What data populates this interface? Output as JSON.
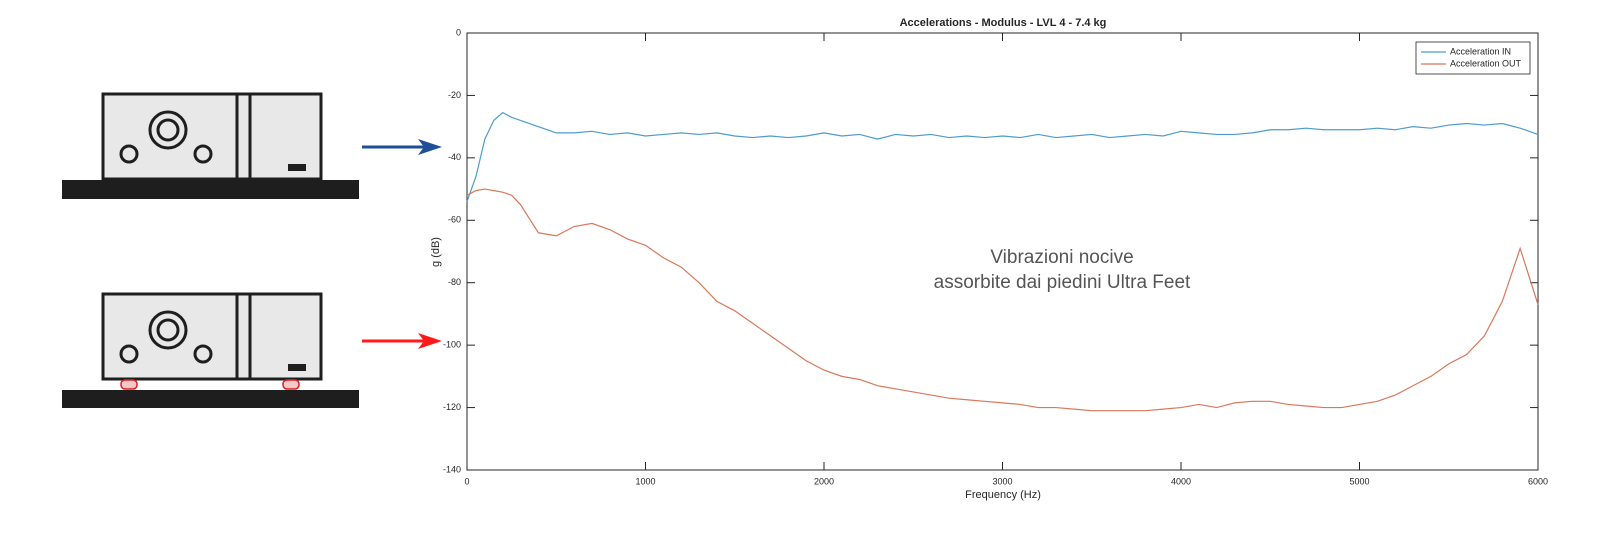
{
  "chart_data": {
    "type": "line",
    "title": "Accelerations - Modulus - LVL 4 - 7.4 kg",
    "x_label": "Frequency (Hz)",
    "y_label": "g (dB)",
    "annotation": [
      "Vibrazioni nocive",
      "assorbite dai piedini Ultra Feet"
    ],
    "x": [
      0,
      50,
      100,
      150,
      200,
      250,
      300,
      400,
      500,
      600,
      700,
      800,
      900,
      1000,
      1100,
      1200,
      1300,
      1400,
      1500,
      1600,
      1700,
      1800,
      1900,
      2000,
      2100,
      2200,
      2300,
      2400,
      2500,
      2600,
      2700,
      2800,
      2900,
      3000,
      3100,
      3200,
      3300,
      3400,
      3500,
      3600,
      3700,
      3800,
      3900,
      4000,
      4100,
      4200,
      4300,
      4400,
      4500,
      4600,
      4700,
      4800,
      4900,
      5000,
      5100,
      5200,
      5300,
      5400,
      5500,
      5600,
      5700,
      5800,
      5900,
      6000
    ],
    "series": [
      {
        "name": "Acceleration IN",
        "color": "#4d9ccc",
        "values": [
          -54,
          -46,
          -34,
          -28,
          -25.5,
          -27,
          -28,
          -30,
          -32,
          -32,
          -31.5,
          -32.5,
          -32,
          -33,
          -32.5,
          -32,
          -32.5,
          -32,
          -33,
          -33.5,
          -33,
          -33.5,
          -33,
          -32,
          -33,
          -32.5,
          -34,
          -32.5,
          -33,
          -32.5,
          -33.5,
          -33,
          -33.5,
          -33,
          -33.5,
          -32.5,
          -33.5,
          -33,
          -32.5,
          -33.5,
          -33,
          -32.5,
          -33,
          -31.5,
          -32,
          -32.5,
          -32.5,
          -32,
          -31,
          -31,
          -30.5,
          -31,
          -31,
          -31,
          -30.5,
          -31,
          -30,
          -30.5,
          -29.5,
          -29,
          -29.5,
          -29,
          -30.5,
          -32.5
        ]
      },
      {
        "name": "Acceleration OUT",
        "color": "#d9785a",
        "values": [
          -52,
          -50.5,
          -50,
          -50.5,
          -51,
          -52,
          -55,
          -64,
          -65,
          -62,
          -61,
          -63,
          -66,
          -68,
          -72,
          -75,
          -80,
          -86,
          -89,
          -93,
          -97,
          -101,
          -105,
          -108,
          -110,
          -111,
          -113,
          -114,
          -115,
          -116,
          -117,
          -117.5,
          -118,
          -118.5,
          -119,
          -120,
          -120,
          -120.5,
          -121,
          -121,
          -121,
          -121,
          -120.5,
          -120,
          -119,
          -120,
          -118.5,
          -118,
          -118,
          -119,
          -119.5,
          -120,
          -120,
          -119,
          -118,
          -116,
          -113,
          -110,
          -106,
          -103,
          -97,
          -86,
          -69,
          -87
        ]
      }
    ],
    "xlim": [
      0,
      6000
    ],
    "xticks": [
      0,
      1000,
      2000,
      3000,
      4000,
      5000,
      6000
    ],
    "ylim": [
      -140,
      0
    ],
    "yticks": [
      0,
      -20,
      -40,
      -60,
      -80,
      -100,
      -120,
      -140
    ],
    "grid": false,
    "legend": "top-right"
  }
}
